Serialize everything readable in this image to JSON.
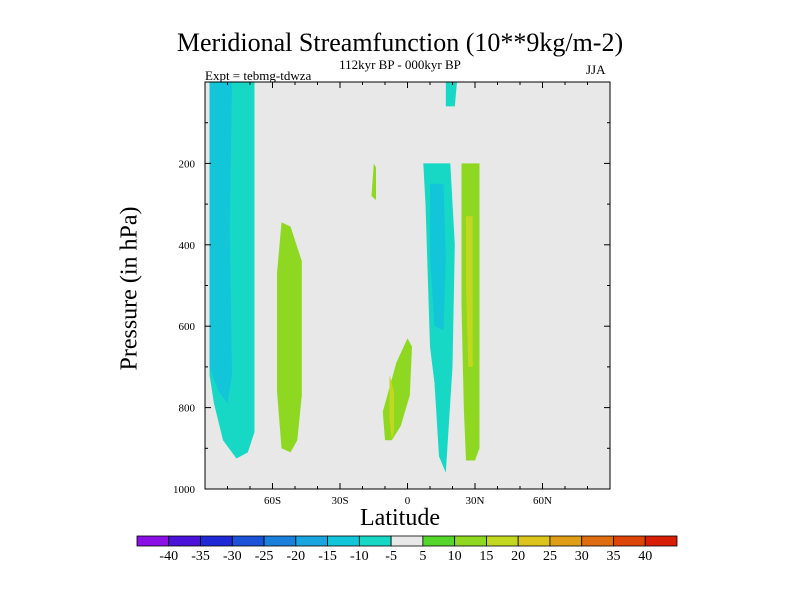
{
  "chart_data": {
    "type": "contour",
    "title": "Meridional Streamfunction (10**9kg/m-2)",
    "subtitle": "112kyr BP - 000kyr BP",
    "experiment": "Expt = tebmg-tdwza",
    "season": "JJA",
    "xlabel": "Latitude",
    "ylabel": "Pressure (in hPa)",
    "xlim": [
      -90,
      90
    ],
    "ylim": [
      1000,
      0
    ],
    "x_ticks": [
      {
        "value": -60,
        "label": "60S"
      },
      {
        "value": -30,
        "label": "30S"
      },
      {
        "value": 0,
        "label": "0"
      },
      {
        "value": 30,
        "label": "30N"
      },
      {
        "value": 60,
        "label": "60N"
      }
    ],
    "y_ticks": [
      {
        "value": 200,
        "label": "200"
      },
      {
        "value": 400,
        "label": "400"
      },
      {
        "value": 600,
        "label": "600"
      },
      {
        "value": 800,
        "label": "800"
      },
      {
        "value": 1000,
        "label": "1000"
      }
    ],
    "colorbar": {
      "levels": [
        "-40",
        "-35",
        "-30",
        "-25",
        "-20",
        "-15",
        "-10",
        "-5",
        "5",
        "10",
        "15",
        "20",
        "25",
        "30",
        "35",
        "40"
      ],
      "colors": [
        "#8a10e6",
        "#4b12d9",
        "#1f2ad6",
        "#1b52d8",
        "#1b7fdc",
        "#19a6e0",
        "#13c5d9",
        "#17d8c4",
        "#e8e8e8",
        "#55d62a",
        "#8ed822",
        "#c2d820",
        "#dcc41c",
        "#e09e16",
        "#e06c12",
        "#dc4408",
        "#d81e04"
      ]
    },
    "regions": [
      {
        "value": -10,
        "polygon": [
          [
            -88,
            0
          ],
          [
            -68,
            0
          ],
          [
            -68,
            860
          ],
          [
            -71,
            910
          ],
          [
            -76,
            925
          ],
          [
            -82,
            880
          ],
          [
            -86,
            790
          ],
          [
            -88,
            720
          ]
        ]
      },
      {
        "value": -15,
        "polygon": [
          [
            -88,
            0
          ],
          [
            -78,
            0
          ],
          [
            -79,
            360
          ],
          [
            -78,
            720
          ],
          [
            -80,
            790
          ],
          [
            -84,
            760
          ],
          [
            -88,
            700
          ]
        ]
      },
      {
        "value": 10,
        "polygon": [
          [
            -56,
            345
          ],
          [
            -52,
            355
          ],
          [
            -47,
            440
          ],
          [
            -47,
            770
          ],
          [
            -49,
            880
          ],
          [
            -52,
            910
          ],
          [
            -56,
            900
          ],
          [
            -58,
            760
          ],
          [
            -58,
            470
          ]
        ]
      },
      {
        "value": -5,
        "polygon": [
          [
            -34,
            570
          ],
          [
            -28,
            545
          ],
          [
            -27,
            680
          ],
          [
            -27,
            870
          ],
          [
            -31,
            935
          ],
          [
            -36,
            910
          ],
          [
            -36,
            740
          ],
          [
            -35,
            620
          ]
        ]
      },
      {
        "value": -5,
        "polygon": [
          [
            -28,
            145
          ],
          [
            -26,
            170
          ],
          [
            -27,
            225
          ],
          [
            -29,
            215
          ]
        ]
      },
      {
        "value": 10,
        "polygon": [
          [
            -15,
            200
          ],
          [
            -14,
            210
          ],
          [
            -14,
            290
          ],
          [
            -16,
            280
          ]
        ]
      },
      {
        "value": 10,
        "polygon": [
          [
            -11,
            810
          ],
          [
            -5,
            690
          ],
          [
            0,
            630
          ],
          [
            2,
            650
          ],
          [
            1,
            770
          ],
          [
            -3,
            845
          ],
          [
            -7,
            880
          ],
          [
            -10,
            880
          ]
        ]
      },
      {
        "value": 15,
        "polygon": [
          [
            -8,
            720
          ],
          [
            -6,
            760
          ],
          [
            -6,
            860
          ],
          [
            -7,
            880
          ],
          [
            -8,
            830
          ]
        ]
      },
      {
        "value": -5,
        "polygon": [
          [
            -6,
            190
          ],
          [
            -3,
            140
          ],
          [
            1,
            175
          ],
          [
            -2,
            260
          ],
          [
            -6,
            240
          ]
        ]
      },
      {
        "value": -5,
        "polygon": [
          [
            5,
            0
          ],
          [
            22,
            0
          ],
          [
            22,
            440
          ],
          [
            22,
            960
          ],
          [
            18,
            955
          ],
          [
            14,
            870
          ],
          [
            13,
            760
          ],
          [
            8,
            760
          ],
          [
            4,
            700
          ],
          [
            4,
            250
          ],
          [
            7,
            180
          ]
        ]
      },
      {
        "value": -10,
        "polygon": [
          [
            7,
            200
          ],
          [
            19,
            200
          ],
          [
            21,
            400
          ],
          [
            20,
            700
          ],
          [
            17,
            960
          ],
          [
            14,
            920
          ],
          [
            12,
            740
          ],
          [
            10,
            650
          ],
          [
            9,
            480
          ],
          [
            8,
            300
          ]
        ]
      },
      {
        "value": -15,
        "polygon": [
          [
            10,
            250
          ],
          [
            16,
            250
          ],
          [
            17,
            430
          ],
          [
            16,
            610
          ],
          [
            12,
            600
          ],
          [
            10,
            430
          ]
        ]
      },
      {
        "value": -10,
        "polygon": [
          [
            17,
            0
          ],
          [
            22,
            0
          ],
          [
            21,
            60
          ],
          [
            17,
            60
          ]
        ]
      },
      {
        "value": 10,
        "polygon": [
          [
            24,
            200
          ],
          [
            32,
            200
          ],
          [
            32,
            900
          ],
          [
            30,
            930
          ],
          [
            26,
            930
          ],
          [
            25,
            800
          ],
          [
            24,
            550
          ]
        ]
      },
      {
        "value": 15,
        "polygon": [
          [
            26,
            330
          ],
          [
            29,
            330
          ],
          [
            29,
            700
          ],
          [
            27,
            700
          ],
          [
            26,
            500
          ]
        ]
      }
    ]
  }
}
